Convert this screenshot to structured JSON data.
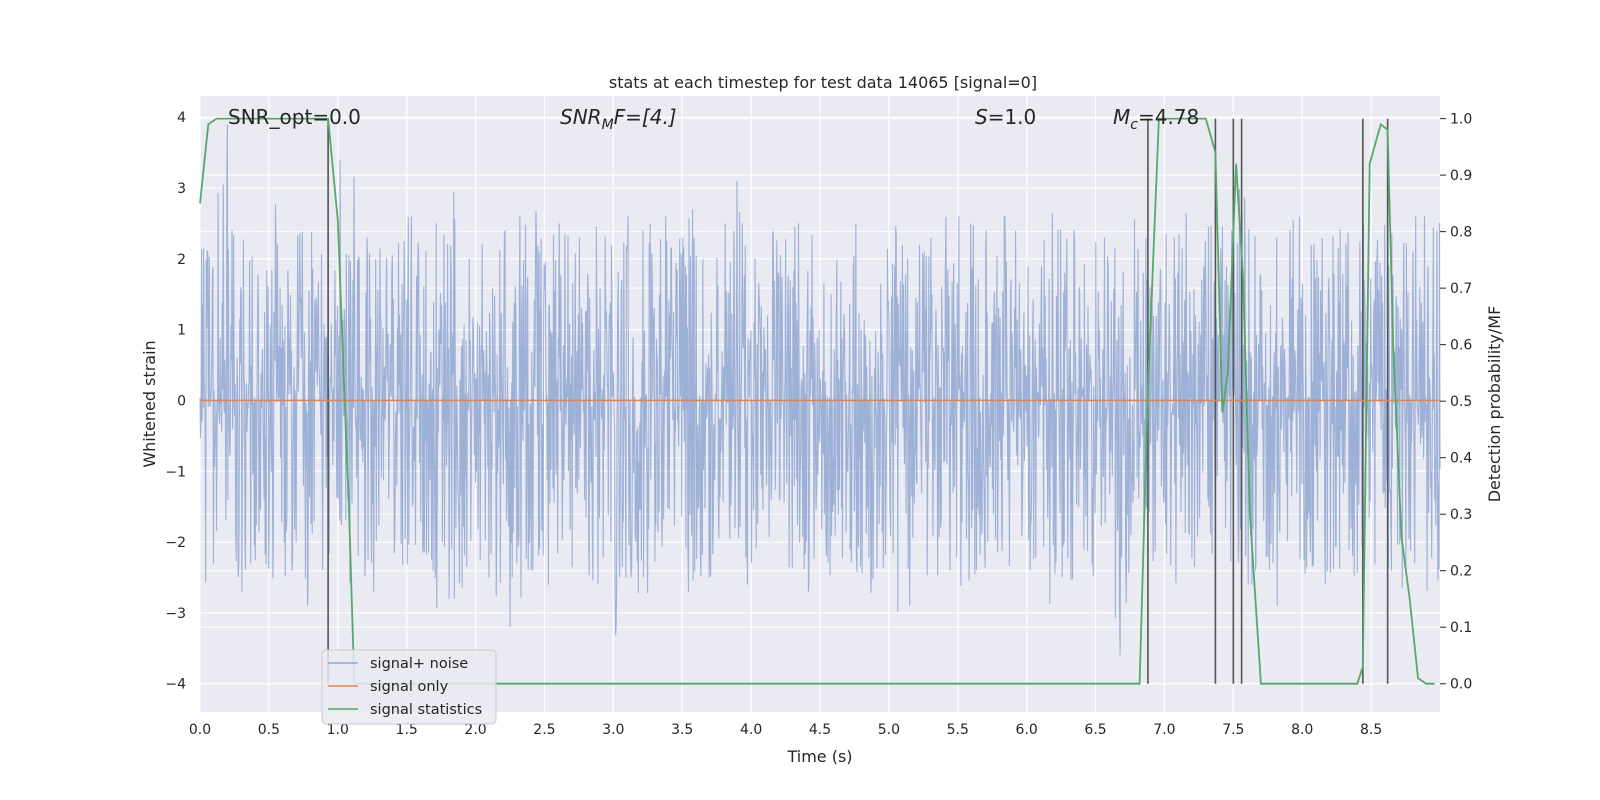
{
  "chart_data": {
    "type": "line",
    "title": "stats at each timestep for test data 14065 [signal=0]",
    "xlabel": "Time (s)",
    "ylabel": "Whitened strain",
    "y2label": "Detection probability/MF",
    "xlim": [
      0.0,
      9.0
    ],
    "ylim": [
      -4.4,
      4.3
    ],
    "y2lim": [
      -0.05,
      1.04
    ],
    "xticks": [
      "0.0",
      "0.5",
      "1.0",
      "1.5",
      "2.0",
      "2.5",
      "3.0",
      "3.5",
      "4.0",
      "4.5",
      "5.0",
      "5.5",
      "6.0",
      "6.5",
      "7.0",
      "7.5",
      "8.0",
      "8.5"
    ],
    "xtick_values": [
      0,
      0.5,
      1,
      1.5,
      2,
      2.5,
      3,
      3.5,
      4,
      4.5,
      5,
      5.5,
      6,
      6.5,
      7,
      7.5,
      8,
      8.5
    ],
    "yticks": [
      "4",
      "3",
      "2",
      "1",
      "0",
      "−1",
      "−2",
      "−3",
      "−4"
    ],
    "ytick_values": [
      4,
      3,
      2,
      1,
      0,
      -1,
      -2,
      -3,
      -4
    ],
    "y2ticks": [
      "1.0",
      "0.9",
      "0.8",
      "0.7",
      "0.6",
      "0.5",
      "0.4",
      "0.3",
      "0.2",
      "0.1",
      "0.0"
    ],
    "y2tick_values": [
      1.0,
      0.9,
      0.8,
      0.7,
      0.6,
      0.5,
      0.4,
      0.3,
      0.2,
      0.1,
      0.0
    ],
    "grid": true,
    "legend_position": "lower-left",
    "annotations": {
      "snr_opt": "SNR_opt=0.0",
      "snr_mf_main": "SNR",
      "snr_mf_sub": "M",
      "snr_mf_rest": "F=[4.]",
      "s_main": "S",
      "s_rest": "=1.0",
      "mc_main": "M",
      "mc_sub": "c",
      "mc_rest": "=4.78"
    },
    "series": [
      {
        "name": "signal+ noise",
        "color": "#8fa6d1",
        "axis": "left",
        "description_samples": "noise",
        "envelope_upper": [
          2.3,
          3.9,
          2.4,
          2.7,
          3.0,
          2.2,
          2.5,
          2.6,
          2.4,
          3.4,
          2.3,
          2.5,
          2.4,
          2.6,
          2.8,
          2.5,
          3.2,
          2.5,
          2.6,
          2.4,
          2.6,
          2.7,
          2.4,
          2.5,
          2.3,
          2.6,
          2.4,
          3.0,
          2.4,
          2.5,
          2.6,
          2.7,
          2.3,
          2.5,
          3.1,
          2.3,
          2.4,
          2.6,
          2.5,
          2.7,
          2.4,
          2.6,
          2.5,
          2.4,
          2.6,
          2.2,
          2.7,
          2.3,
          2.6,
          2.5,
          2.4,
          2.6,
          2.4,
          2.7,
          2.9,
          2.5,
          2.4,
          2.6,
          2.5,
          2.2,
          3.0,
          2.4,
          2.6,
          2.8,
          2.3,
          2.5,
          2.4,
          3.1,
          2.6,
          2.3,
          2.6,
          2.4,
          2.5,
          2.5,
          2.7,
          2.5,
          2.6,
          2.4,
          2.6,
          3.0
        ],
        "envelope_lower": [
          -2.6,
          -2.4,
          -2.7,
          -2.3,
          -3.1,
          -2.5,
          -2.9,
          -3.2,
          -2.4,
          -2.6,
          -2.5,
          -2.7,
          -2.3,
          -2.5,
          -2.4,
          -3.3,
          -2.8,
          -2.6,
          -2.5,
          -2.9,
          -3.2,
          -2.4,
          -2.6,
          -2.5,
          -2.4,
          -2.7,
          -3.6,
          -2.5,
          -2.9,
          -2.4,
          -2.6,
          -2.7,
          -2.5,
          -2.3,
          -2.4,
          -2.6,
          -2.5,
          -2.6,
          -2.4,
          -2.7,
          -2.5,
          -2.3,
          -2.5,
          -2.8,
          -2.4,
          -3.0,
          -2.5,
          -2.6,
          -2.4,
          -2.7,
          -2.5,
          -2.6,
          -2.6,
          -2.4,
          -2.9,
          -2.5,
          -2.6,
          -2.7,
          -2.4,
          -3.6,
          -2.5,
          -2.4,
          -2.6,
          -2.3,
          -2.5,
          -2.7,
          -2.4,
          -2.6,
          -2.4,
          -2.9,
          -2.7,
          -2.5,
          -2.6,
          -2.4,
          -2.5,
          -2.6,
          -2.4,
          -2.7,
          -2.3,
          -2.8
        ]
      },
      {
        "name": "signal only",
        "color": "#dd8452",
        "axis": "left",
        "x": [
          0.0,
          9.0
        ],
        "y": [
          0.0,
          0.0
        ]
      },
      {
        "name": "signal statistics",
        "color": "#55a868",
        "axis": "right",
        "x": [
          0.0,
          0.06,
          0.12,
          0.2,
          0.5,
          0.8,
          0.93,
          1.0,
          1.05,
          1.08,
          1.12,
          1.2,
          1.5,
          3.0,
          5.0,
          6.5,
          6.82,
          6.88,
          6.96,
          7.05,
          7.15,
          7.3,
          7.37,
          7.42,
          7.46,
          7.52,
          7.57,
          7.62,
          7.7,
          7.76,
          8.0,
          8.4,
          8.44,
          8.49,
          8.57,
          8.62,
          8.66,
          8.72,
          8.78,
          8.84,
          8.9,
          8.96
        ],
        "y": [
          0.85,
          0.99,
          1.0,
          1.0,
          1.0,
          1.0,
          1.0,
          0.82,
          0.5,
          0.32,
          0.0,
          0.0,
          0.0,
          0.0,
          0.0,
          0.0,
          0.0,
          0.52,
          1.0,
          1.0,
          1.0,
          1.0,
          0.94,
          0.48,
          0.55,
          0.92,
          0.72,
          0.3,
          0.0,
          0.0,
          0.0,
          0.0,
          0.03,
          0.92,
          0.99,
          0.98,
          0.6,
          0.26,
          0.15,
          0.01,
          0.0,
          0.0
        ]
      }
    ],
    "vertical_markers": [
      0.93,
      6.88,
      7.37,
      7.5,
      7.56,
      8.44,
      8.62
    ]
  }
}
